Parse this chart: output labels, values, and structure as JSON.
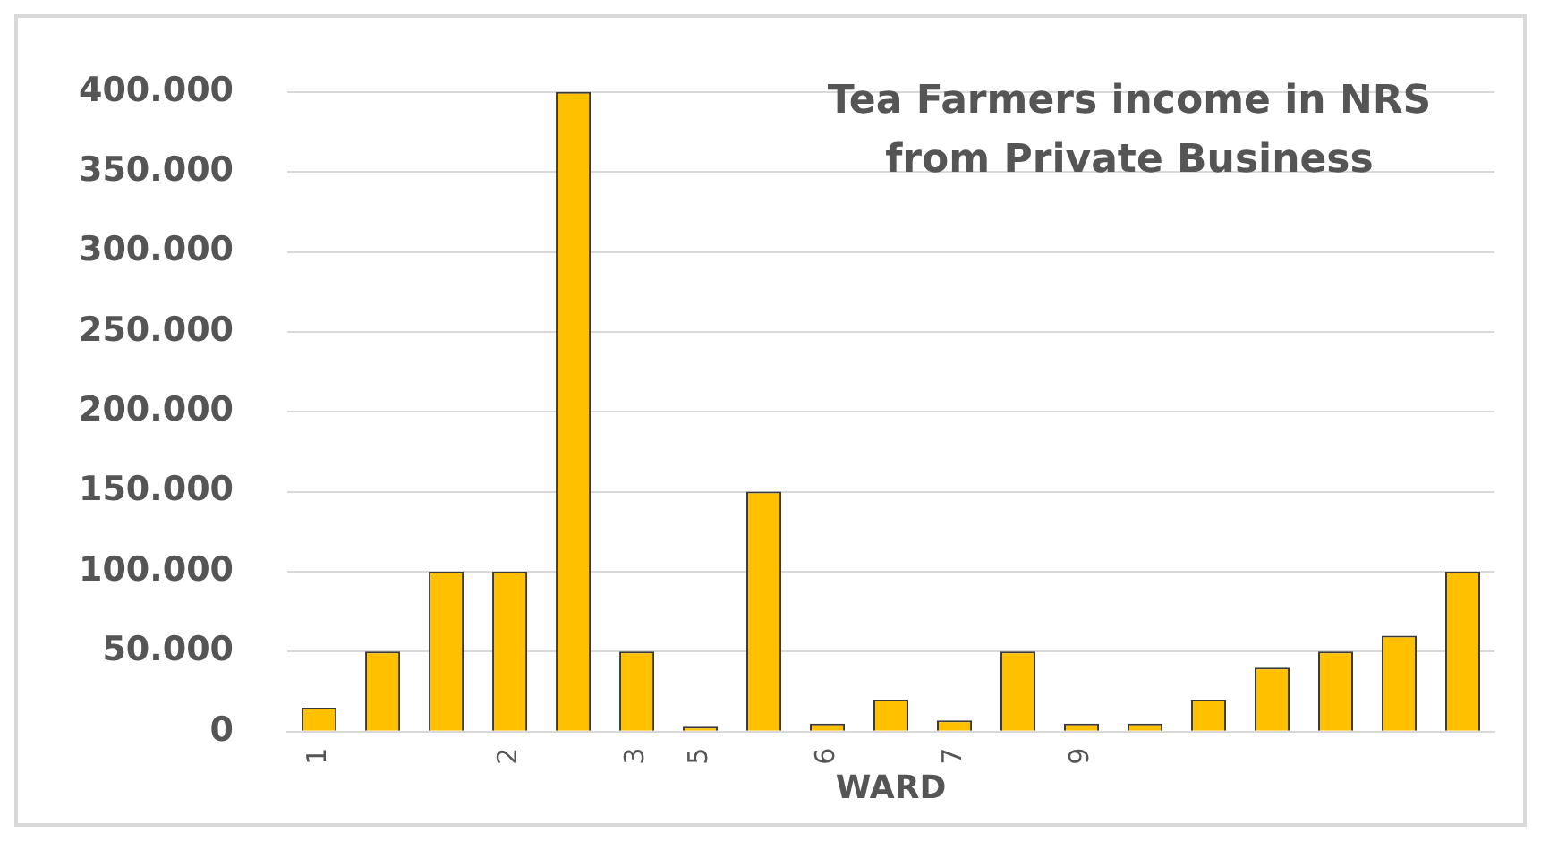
{
  "chart_data": {
    "type": "bar",
    "title": "Tea Farmers income in NRS\nfrom Private Business",
    "xlabel": "WARD",
    "categories": [
      "1",
      null,
      null,
      "2",
      null,
      "3",
      "5",
      null,
      "6",
      null,
      "7",
      null,
      "9",
      null,
      null,
      null,
      null,
      null,
      null
    ],
    "values": [
      15000,
      50000,
      100000,
      100000,
      400000,
      50000,
      3000,
      150000,
      5000,
      20000,
      7000,
      50000,
      5000,
      5000,
      20000,
      40000,
      50000,
      60000,
      100000
    ],
    "color": "#ffc000",
    "ylim": [
      0,
      400000
    ],
    "yticks": [
      {
        "value": 0,
        "label": "0"
      },
      {
        "value": 50000,
        "label": "50.000"
      },
      {
        "value": 100000,
        "label": "100.000"
      },
      {
        "value": 150000,
        "label": "150.000"
      },
      {
        "value": 200000,
        "label": "200.000"
      },
      {
        "value": 250000,
        "label": "250.000"
      },
      {
        "value": 300000,
        "label": "300.000"
      },
      {
        "value": 350000,
        "label": "350.000"
      },
      {
        "value": 400000,
        "label": "400.000"
      }
    ],
    "grid": "y",
    "legend": false
  }
}
